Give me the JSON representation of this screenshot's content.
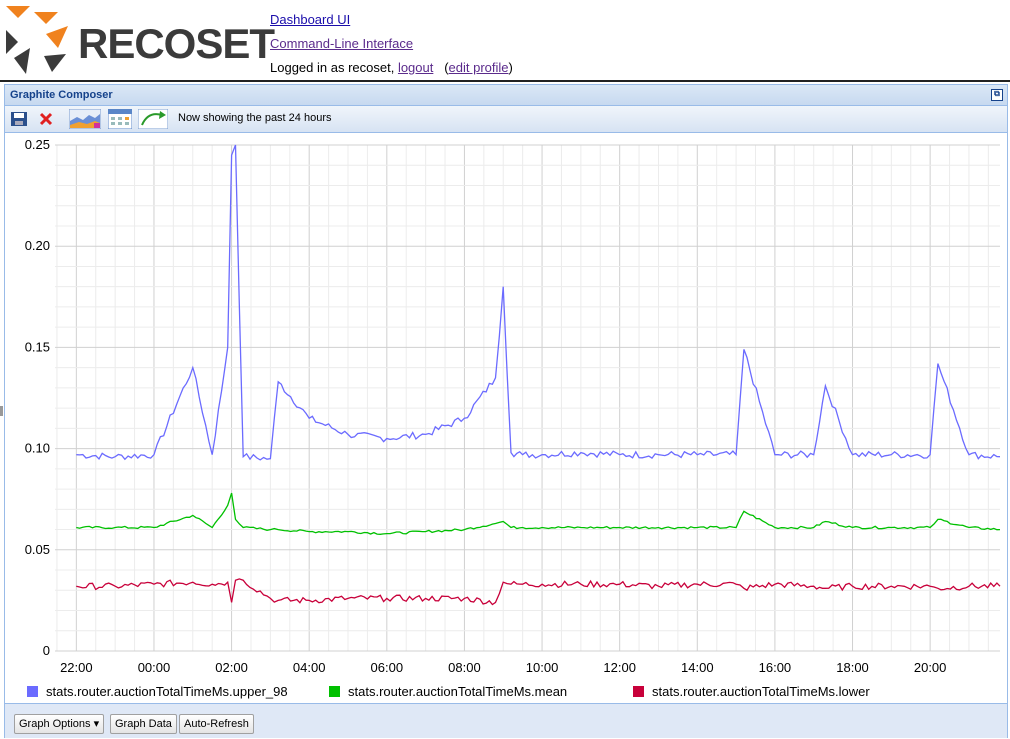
{
  "header": {
    "logo_text": "RECOSET",
    "dashboard_link": "Dashboard UI",
    "cli_link": "Command-Line Interface",
    "logged_in_prefix": "Logged in as recoset,",
    "logout_link": "logout",
    "edit_profile_link": "edit profile"
  },
  "panel": {
    "title": "Graphite Composer",
    "status_text": "Now showing the past 24 hours"
  },
  "buttons": {
    "graph_options": "Graph Options",
    "graph_data": "Graph Data",
    "auto_refresh": "Auto-Refresh"
  },
  "colors": {
    "upper": "#6b6bff",
    "mean": "#00c000",
    "lower": "#c8003a",
    "logo_orange": "#f0821e",
    "logo_dark": "#3b3b3b"
  },
  "chart_data": {
    "type": "line",
    "ylim": [
      0,
      0.25
    ],
    "yticks": [
      "0",
      "0.05",
      "0.10",
      "0.15",
      "0.20",
      "0.25"
    ],
    "xticks": [
      "22:00",
      "00:00",
      "02:00",
      "04:00",
      "06:00",
      "08:00",
      "10:00",
      "12:00",
      "14:00",
      "16:00",
      "18:00",
      "20:00"
    ],
    "x_hours": [
      -2,
      -1,
      0,
      1,
      1.5,
      1.9,
      2.0,
      2.1,
      2.3,
      3.0,
      3.2,
      4,
      5,
      6,
      7,
      8,
      8.8,
      9.0,
      9.2,
      9.5,
      10,
      11,
      12,
      13,
      14,
      15,
      15.2,
      16,
      17,
      17.3,
      18,
      19,
      20,
      20.2,
      21,
      21.8
    ],
    "series": [
      {
        "name": "stats.router.auctionTotalTimeMs.upper_98",
        "values": [
          0.097,
          0.096,
          0.097,
          0.14,
          0.097,
          0.15,
          0.245,
          0.25,
          0.096,
          0.095,
          0.133,
          0.115,
          0.107,
          0.105,
          0.107,
          0.115,
          0.135,
          0.18,
          0.098,
          0.097,
          0.097,
          0.098,
          0.097,
          0.097,
          0.097,
          0.097,
          0.149,
          0.097,
          0.097,
          0.131,
          0.097,
          0.097,
          0.097,
          0.142,
          0.097,
          0.096
        ]
      },
      {
        "name": "stats.router.auctionTotalTimeMs.mean",
        "values": [
          0.061,
          0.061,
          0.061,
          0.067,
          0.061,
          0.072,
          0.078,
          0.065,
          0.061,
          0.06,
          0.06,
          0.059,
          0.059,
          0.058,
          0.059,
          0.06,
          0.063,
          0.064,
          0.061,
          0.061,
          0.061,
          0.061,
          0.061,
          0.061,
          0.061,
          0.061,
          0.069,
          0.061,
          0.061,
          0.064,
          0.061,
          0.061,
          0.061,
          0.065,
          0.061,
          0.06
        ]
      },
      {
        "name": "stats.router.auctionTotalTimeMs.lower",
        "values": [
          0.032,
          0.032,
          0.033,
          0.034,
          0.033,
          0.034,
          0.024,
          0.035,
          0.035,
          0.026,
          0.025,
          0.025,
          0.026,
          0.026,
          0.026,
          0.026,
          0.024,
          0.034,
          0.033,
          0.033,
          0.033,
          0.033,
          0.033,
          0.032,
          0.033,
          0.033,
          0.031,
          0.033,
          0.032,
          0.031,
          0.032,
          0.032,
          0.032,
          0.031,
          0.032,
          0.032
        ]
      }
    ],
    "legend_position": "bottom"
  }
}
